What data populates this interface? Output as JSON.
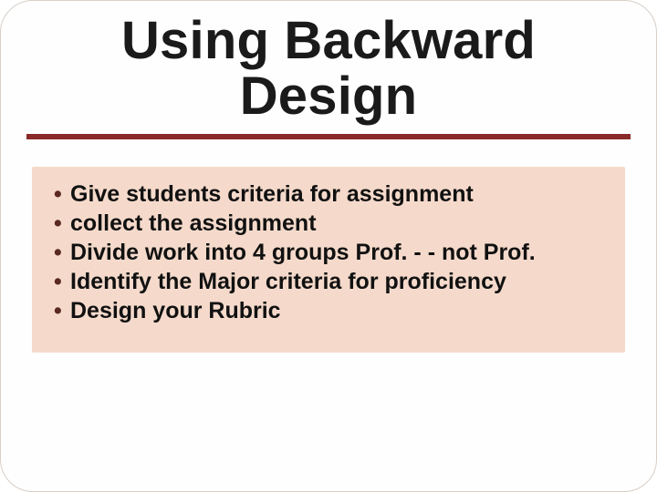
{
  "slide": {
    "title": "Using Backward Design",
    "title_fontsize": 58,
    "title_color": "#1a1a1a",
    "background_color": "#fefefe",
    "border_color": "#d8cfc7",
    "border_radius": 36,
    "accent_bar": {
      "color": "#8a2a2a",
      "height": 6
    },
    "content_box": {
      "background_color": "#f5dacb",
      "text_color": "#111111",
      "bullet_color": "#5a2a22",
      "fontsize": 25,
      "font_weight": 700,
      "items": [
        "Give students criteria for assignment",
        "collect the assignment",
        "Divide work into 4 groups  Prof. - - not Prof.",
        "Identify the Major criteria for proficiency",
        "Design your Rubric"
      ]
    }
  }
}
